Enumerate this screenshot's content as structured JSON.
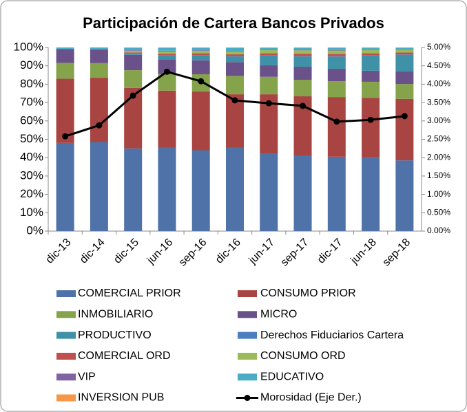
{
  "chart_data": {
    "type": "stacked_bar_line",
    "title": "Participación de Cartera Bancos Privados",
    "categories": [
      "dic-13",
      "dic-14",
      "dic-15",
      "jun-16",
      "sep-16",
      "dic-16",
      "jun-17",
      "sep-17",
      "dic-17",
      "jun-18",
      "sep-18"
    ],
    "ylim": [
      0,
      100
    ],
    "yticks": [
      {
        "value": 0,
        "label": "0%"
      },
      {
        "value": 10,
        "label": "10%"
      },
      {
        "value": 20,
        "label": "20%"
      },
      {
        "value": 30,
        "label": "30%"
      },
      {
        "value": 40,
        "label": "40%"
      },
      {
        "value": 50,
        "label": "50%"
      },
      {
        "value": 60,
        "label": "60%"
      },
      {
        "value": 70,
        "label": "70%"
      },
      {
        "value": 80,
        "label": "80%"
      },
      {
        "value": 90,
        "label": "90%"
      },
      {
        "value": 100,
        "label": "100%"
      }
    ],
    "y2lim": [
      0,
      5
    ],
    "y2ticks": [
      {
        "value": 0,
        "label": "0.00%"
      },
      {
        "value": 0.5,
        "label": "0.50%"
      },
      {
        "value": 1,
        "label": "1.00%"
      },
      {
        "value": 1.5,
        "label": "1.50%"
      },
      {
        "value": 2,
        "label": "2.00%"
      },
      {
        "value": 2.5,
        "label": "2.50%"
      },
      {
        "value": 3,
        "label": "3.00%"
      },
      {
        "value": 3.5,
        "label": "3.50%"
      },
      {
        "value": 4,
        "label": "4.00%"
      },
      {
        "value": 4.5,
        "label": "4.50%"
      },
      {
        "value": 5,
        "label": "5.00%"
      }
    ],
    "series": [
      {
        "name": "COMERCIAL PRIOR",
        "color": "#4f72a8",
        "type": "bar",
        "values": [
          48,
          48.5,
          45,
          45.5,
          44,
          45.5,
          42,
          41,
          40.5,
          40,
          38.5
        ]
      },
      {
        "name": "CONSUMO PRIOR",
        "color": "#a84543",
        "type": "bar",
        "values": [
          35,
          35,
          33,
          31,
          32,
          29,
          32.5,
          32.4,
          32.5,
          32.6,
          33.5
        ]
      },
      {
        "name": "INMOBILIARIO",
        "color": "#85a34a",
        "type": "bar",
        "values": [
          8.6,
          8,
          9.6,
          9,
          9.4,
          10,
          9.5,
          9,
          8.6,
          8.7,
          8.1
        ]
      },
      {
        "name": "MICRO",
        "color": "#6b5189",
        "type": "bar",
        "values": [
          7.6,
          7.4,
          8.4,
          8,
          7.6,
          7.5,
          6.3,
          7.1,
          6.8,
          6,
          6.8
        ]
      },
      {
        "name": "PRODUCTIVO",
        "color": "#3f91a8",
        "type": "bar",
        "values": [
          0,
          0,
          0.5,
          2,
          2.5,
          3,
          5,
          5.5,
          6.5,
          8,
          9
        ]
      },
      {
        "name": "Derechos Fiduciarios Cartera",
        "color": "#4a7fc1",
        "type": "bar",
        "values": [
          0,
          0,
          0.3,
          0.3,
          0.3,
          0.3,
          0.3,
          0.3,
          0.3,
          0.3,
          0.3
        ]
      },
      {
        "name": "COMERCIAL ORD",
        "color": "#c0504d",
        "type": "bar",
        "values": [
          0,
          0,
          0.5,
          0.8,
          1,
          1,
          1.2,
          1.3,
          1.3,
          1.2,
          1
        ]
      },
      {
        "name": "CONSUMO ORD",
        "color": "#9bbb59",
        "type": "bar",
        "values": [
          0,
          0,
          0.8,
          1.2,
          1.3,
          1.5,
          1.7,
          1.8,
          1.8,
          1.8,
          1.5
        ]
      },
      {
        "name": "VIP",
        "color": "#8064a2",
        "type": "bar",
        "values": [
          0,
          0,
          0.3,
          0.4,
          0.3,
          0.3,
          0.3,
          0.3,
          0.3,
          0.3,
          0.3
        ]
      },
      {
        "name": "EDUCATIVO",
        "color": "#4bacc6",
        "type": "bar",
        "values": [
          0.8,
          1.1,
          1.5,
          1.7,
          1.5,
          1.8,
          1.1,
          1.2,
          1.3,
          1,
          0.9
        ]
      },
      {
        "name": "INVERSION PUB",
        "color": "#f79646",
        "type": "bar",
        "values": [
          0,
          0,
          0.1,
          0.1,
          0.1,
          0.1,
          0.1,
          0.1,
          0.1,
          0.1,
          0.1
        ]
      },
      {
        "name": "Morosidad (Eje Der.)",
        "color": "#000000",
        "type": "line",
        "axis": "y2",
        "values": [
          2.58,
          2.88,
          3.69,
          4.34,
          4.08,
          3.56,
          3.48,
          3.41,
          2.98,
          3.03,
          3.13
        ]
      }
    ]
  }
}
